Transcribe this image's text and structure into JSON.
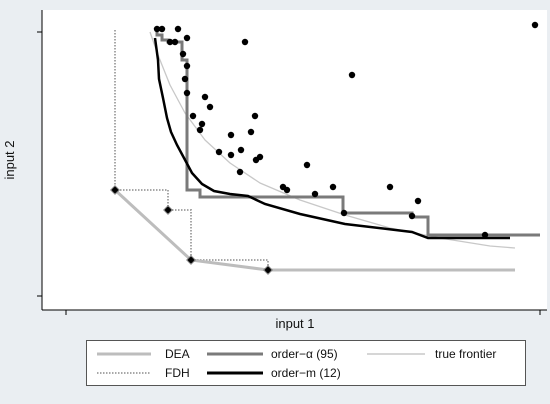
{
  "chart_data": {
    "type": "scatter",
    "xlabel": "input 1",
    "ylabel": "input 2",
    "grid": false,
    "legend_position": "bottom",
    "colors": {
      "DEA": "#bdbdbd",
      "FDH": "#a8a8a8",
      "order-alpha": "#7a7a7a",
      "order-m": "#000000",
      "true frontier": "#c8c8c8",
      "points": "#000000"
    },
    "legend": [
      {
        "key": "DEA",
        "label": "DEA",
        "style": "solid-light"
      },
      {
        "key": "order-alpha",
        "label": "order−α (95)",
        "style": "solid-mid"
      },
      {
        "key": "true frontier",
        "label": "true frontier",
        "style": "thin-light"
      },
      {
        "key": "FDH",
        "label": "FDH",
        "style": "dotted"
      },
      {
        "key": "order-m",
        "label": "order−m (12)",
        "style": "solid-black"
      }
    ],
    "points": [
      [
        157,
        29
      ],
      [
        162,
        29
      ],
      [
        178,
        29
      ],
      [
        187,
        38
      ],
      [
        170,
        42
      ],
      [
        175,
        42
      ],
      [
        183,
        54
      ],
      [
        187,
        66
      ],
      [
        185,
        79
      ],
      [
        187,
        93
      ],
      [
        245,
        42
      ],
      [
        352,
        75
      ],
      [
        535,
        25
      ],
      [
        205,
        97
      ],
      [
        210,
        107
      ],
      [
        193,
        116
      ],
      [
        202,
        124
      ],
      [
        255,
        116
      ],
      [
        200,
        130
      ],
      [
        231,
        135
      ],
      [
        251,
        132
      ],
      [
        219,
        152
      ],
      [
        231,
        155
      ],
      [
        241,
        150
      ],
      [
        256,
        160
      ],
      [
        260,
        157
      ],
      [
        240,
        172
      ],
      [
        307,
        165
      ],
      [
        283,
        187
      ],
      [
        287,
        190
      ],
      [
        333,
        187
      ],
      [
        390,
        187
      ],
      [
        418,
        201
      ],
      [
        315,
        194
      ],
      [
        168,
        210
      ],
      [
        115,
        190
      ],
      [
        191,
        260
      ],
      [
        268,
        270
      ],
      [
        344,
        213
      ],
      [
        412,
        216
      ],
      [
        485,
        235
      ]
    ],
    "open_markers": [
      [
        115,
        190
      ],
      [
        191,
        260
      ],
      [
        268,
        270
      ],
      [
        168,
        210
      ]
    ],
    "series": [
      {
        "name": "DEA",
        "points": [
          [
            115,
            190
          ],
          [
            191,
            260
          ],
          [
            268,
            270
          ],
          [
            515,
            270
          ]
        ]
      },
      {
        "name": "FDH",
        "points": [
          [
            115,
            30
          ],
          [
            115,
            190
          ],
          [
            168,
            190
          ],
          [
            168,
            210
          ],
          [
            191,
            210
          ],
          [
            191,
            260
          ],
          [
            268,
            260
          ],
          [
            268,
            270
          ],
          [
            515,
            270
          ]
        ]
      },
      {
        "name": "order−α (95)",
        "points": [
          [
            157,
            30
          ],
          [
            157,
            35
          ],
          [
            162,
            35
          ],
          [
            162,
            40
          ],
          [
            168,
            40
          ],
          [
            168,
            42
          ],
          [
            182,
            42
          ],
          [
            182,
            60
          ],
          [
            187,
            60
          ],
          [
            187,
            190
          ],
          [
            200,
            190
          ],
          [
            200,
            197
          ],
          [
            343,
            197
          ],
          [
            343,
            213
          ],
          [
            412,
            213
          ],
          [
            412,
            217
          ],
          [
            428,
            217
          ],
          [
            428,
            235
          ],
          [
            540,
            235
          ]
        ]
      },
      {
        "name": "order−m (12)",
        "points": [
          [
            155,
            38
          ],
          [
            158,
            60
          ],
          [
            159,
            79
          ],
          [
            163,
            98
          ],
          [
            167,
            118
          ],
          [
            171,
            132
          ],
          [
            177,
            145
          ],
          [
            184,
            158
          ],
          [
            192,
            173
          ],
          [
            202,
            184
          ],
          [
            214,
            191
          ],
          [
            230,
            194
          ],
          [
            248,
            196
          ],
          [
            265,
            204
          ],
          [
            300,
            214
          ],
          [
            345,
            224
          ],
          [
            412,
            232
          ],
          [
            428,
            238
          ],
          [
            510,
            238
          ]
        ]
      },
      {
        "name": "true frontier",
        "points": [
          [
            150,
            32
          ],
          [
            158,
            55
          ],
          [
            170,
            85
          ],
          [
            185,
            113
          ],
          [
            205,
            140
          ],
          [
            230,
            163
          ],
          [
            260,
            183
          ],
          [
            300,
            200
          ],
          [
            345,
            215
          ],
          [
            390,
            228
          ],
          [
            440,
            238
          ],
          [
            490,
            246
          ],
          [
            515,
            248
          ]
        ]
      }
    ]
  }
}
